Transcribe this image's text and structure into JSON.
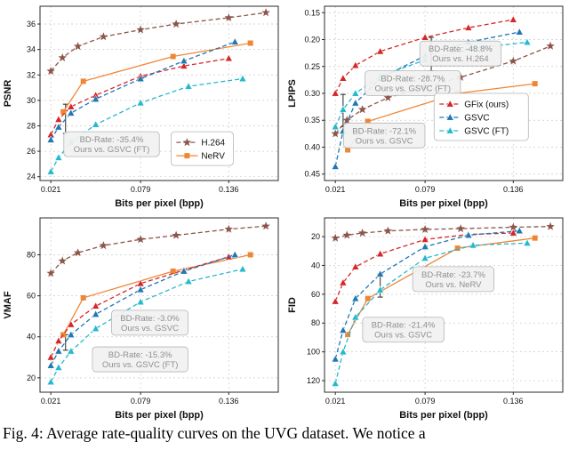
{
  "caption": "Fig. 4: Average rate-quality curves on the UVG dataset. We notice a",
  "xlabel": "Bits per pixel (bpp)",
  "colors": {
    "h264": "#8c564b",
    "nerv": "#ef8636",
    "gfix": "#d62728",
    "gsvc": "#1f77b4",
    "gsvc_ft": "#25b9cf",
    "annotation_text": "#8f8f8f",
    "annotation_box": "#f1f1f1"
  },
  "chart_data": [
    {
      "id": "psnr",
      "type": "line",
      "title": "",
      "ylabel": "PSNR",
      "inverted": false,
      "xlim": [
        0.014,
        0.168
      ],
      "ylim": [
        23.7,
        37.4
      ],
      "xticks": {
        "values": [
          0.021,
          0.079,
          0.136
        ],
        "labels": [
          "0.021",
          "0.079",
          "0.136"
        ]
      },
      "yticks": {
        "values": [
          24,
          26,
          28,
          30,
          32,
          34,
          36
        ],
        "labels": [
          "24",
          "26",
          "28",
          "30",
          "32",
          "34",
          "36"
        ]
      },
      "series": [
        {
          "name": "H.264",
          "color": "#8c564b",
          "marker": "star",
          "dash": true,
          "x": [
            0.021,
            0.0285,
            0.0385,
            0.055,
            0.079,
            0.102,
            0.136,
            0.16
          ],
          "y": [
            32.3,
            33.35,
            34.25,
            35.0,
            35.55,
            36.0,
            36.5,
            36.9
          ]
        },
        {
          "name": "NeRV",
          "color": "#ef8636",
          "marker": "square",
          "dash": false,
          "x": [
            0.029,
            0.042,
            0.1,
            0.15
          ],
          "y": [
            29.1,
            31.5,
            33.45,
            34.5
          ]
        },
        {
          "name": "GFix (ours)",
          "color": "#d62728",
          "marker": "triangle",
          "dash": true,
          "x": [
            0.021,
            0.026,
            0.034,
            0.05,
            0.079,
            0.107,
            0.136
          ],
          "y": [
            27.3,
            28.5,
            29.5,
            30.4,
            31.9,
            32.7,
            33.3
          ]
        },
        {
          "name": "GSVC",
          "color": "#1f77b4",
          "marker": "triangle",
          "dash": true,
          "x": [
            0.021,
            0.026,
            0.034,
            0.05,
            0.079,
            0.107,
            0.14
          ],
          "y": [
            26.9,
            27.9,
            29.0,
            30.1,
            31.7,
            33.1,
            34.6
          ]
        },
        {
          "name": "GSVC (FT)",
          "color": "#25b9cf",
          "marker": "triangle",
          "dash": true,
          "x": [
            0.021,
            0.026,
            0.034,
            0.05,
            0.079,
            0.11,
            0.145
          ],
          "y": [
            24.4,
            25.5,
            26.7,
            28.1,
            29.8,
            31.1,
            31.7
          ]
        }
      ],
      "legend": {
        "items": [
          "H.264",
          "NeRV"
        ],
        "x": 0.55,
        "y": 0.72
      },
      "annotations": [
        {
          "lines": [
            "BD-Rate: -35.4%",
            "Ours vs. GSVC (FT)"
          ],
          "x": 0.1,
          "y": 0.72
        }
      ],
      "arrows": [
        {
          "x": 0.0305,
          "y1": 27.4,
          "y2": 29.7
        }
      ]
    },
    {
      "id": "lpips",
      "type": "line",
      "title": "",
      "ylabel": "LPIPS",
      "inverted": true,
      "xlim": [
        0.014,
        0.168
      ],
      "ylim": [
        0.138,
        0.462
      ],
      "xticks": {
        "values": [
          0.021,
          0.079,
          0.136
        ],
        "labels": [
          "0.021",
          "0.079",
          "0.136"
        ]
      },
      "yticks": {
        "values": [
          0.15,
          0.2,
          0.25,
          0.3,
          0.35,
          0.4,
          0.45
        ],
        "labels": [
          "0.15",
          "0.20",
          "0.25",
          "0.30",
          "0.35",
          "0.40",
          "0.45"
        ]
      },
      "series": [
        {
          "name": "H.264",
          "color": "#8c564b",
          "marker": "star",
          "dash": true,
          "x": [
            0.021,
            0.0285,
            0.0385,
            0.055,
            0.079,
            0.102,
            0.136,
            0.16
          ],
          "y": [
            0.375,
            0.35,
            0.33,
            0.308,
            0.288,
            0.27,
            0.24,
            0.212
          ]
        },
        {
          "name": "NeRV",
          "color": "#ef8636",
          "marker": "square",
          "dash": false,
          "x": [
            0.029,
            0.042,
            0.1,
            0.15
          ],
          "y": [
            0.405,
            0.352,
            0.3,
            0.282
          ]
        },
        {
          "name": "GFix (ours)",
          "color": "#d62728",
          "marker": "triangle",
          "dash": true,
          "x": [
            0.021,
            0.026,
            0.034,
            0.05,
            0.079,
            0.107,
            0.136
          ],
          "y": [
            0.3,
            0.272,
            0.248,
            0.222,
            0.196,
            0.178,
            0.163
          ]
        },
        {
          "name": "GSVC",
          "color": "#1f77b4",
          "marker": "triangle",
          "dash": true,
          "x": [
            0.021,
            0.026,
            0.034,
            0.05,
            0.079,
            0.107,
            0.14
          ],
          "y": [
            0.436,
            0.37,
            0.318,
            0.272,
            0.23,
            0.205,
            0.186
          ]
        },
        {
          "name": "GSVC (FT)",
          "color": "#25b9cf",
          "marker": "triangle",
          "dash": true,
          "x": [
            0.021,
            0.026,
            0.034,
            0.05,
            0.079,
            0.11,
            0.145
          ],
          "y": [
            0.362,
            0.33,
            0.3,
            0.268,
            0.238,
            0.216,
            0.205
          ]
        }
      ],
      "legend": {
        "items": [
          "GFix (ours)",
          "GSVC",
          "GSVC (FT)"
        ],
        "x": 0.46,
        "y": 0.5
      },
      "annotations": [
        {
          "lines": [
            "BD-Rate: -48.8%",
            "Ours vs. H.264"
          ],
          "x": 0.4,
          "y": 0.2
        },
        {
          "lines": [
            "BD-Rate: -28.7%",
            "Ours vs. GSVC (FT)"
          ],
          "x": 0.17,
          "y": 0.37
        },
        {
          "lines": [
            "BD-Rate: -72.1%",
            "Ours vs. GSVC"
          ],
          "x": 0.08,
          "y": 0.67
        }
      ],
      "arrows": [
        {
          "x": 0.026,
          "y1": 0.302,
          "y2": 0.362
        },
        {
          "x": 0.083,
          "y1": 0.196,
          "y2": 0.258
        }
      ]
    },
    {
      "id": "vmaf",
      "type": "line",
      "title": "",
      "ylabel": "VMAF",
      "inverted": false,
      "xlim": [
        0.014,
        0.168
      ],
      "ylim": [
        13,
        98
      ],
      "xticks": {
        "values": [
          0.021,
          0.079,
          0.136
        ],
        "labels": [
          "0.021",
          "0.079",
          "0.136"
        ]
      },
      "yticks": {
        "values": [
          20,
          40,
          60,
          80
        ],
        "labels": [
          "20",
          "40",
          "60",
          "80"
        ]
      },
      "series": [
        {
          "name": "H.264",
          "color": "#8c564b",
          "marker": "star",
          "dash": true,
          "x": [
            0.021,
            0.0285,
            0.0385,
            0.055,
            0.079,
            0.102,
            0.136,
            0.16
          ],
          "y": [
            71,
            77,
            81,
            84.5,
            87.5,
            89.5,
            92.5,
            94
          ]
        },
        {
          "name": "NeRV",
          "color": "#ef8636",
          "marker": "square",
          "dash": false,
          "x": [
            0.029,
            0.042,
            0.1,
            0.15
          ],
          "y": [
            41,
            59,
            72,
            80
          ]
        },
        {
          "name": "GFix (ours)",
          "color": "#d62728",
          "marker": "triangle",
          "dash": true,
          "x": [
            0.021,
            0.026,
            0.034,
            0.05,
            0.079,
            0.107,
            0.136
          ],
          "y": [
            30,
            38,
            46,
            55,
            66,
            72.5,
            79
          ]
        },
        {
          "name": "GSVC",
          "color": "#1f77b4",
          "marker": "triangle",
          "dash": true,
          "x": [
            0.021,
            0.026,
            0.034,
            0.05,
            0.079,
            0.107,
            0.14
          ],
          "y": [
            26,
            33,
            41,
            51,
            63,
            72,
            80
          ]
        },
        {
          "name": "GSVC (FT)",
          "color": "#25b9cf",
          "marker": "triangle",
          "dash": true,
          "x": [
            0.021,
            0.026,
            0.034,
            0.05,
            0.079,
            0.11,
            0.145
          ],
          "y": [
            18,
            25,
            33,
            44,
            57,
            67,
            73
          ]
        }
      ],
      "annotations": [
        {
          "lines": [
            "BD-Rate: -3.0%",
            "Ours vs. GSVC"
          ],
          "x": 0.3,
          "y": 0.53
        },
        {
          "lines": [
            "BD-Rate: -15.3%",
            "Ours vs. GSVC (FT)"
          ],
          "x": 0.22,
          "y": 0.74
        }
      ],
      "arrows": [
        {
          "x": 0.0305,
          "y1": 33.5,
          "y2": 41
        }
      ]
    },
    {
      "id": "fid",
      "type": "line",
      "title": "",
      "ylabel": "FID",
      "inverted": true,
      "xlim": [
        0.014,
        0.168
      ],
      "ylim": [
        7,
        128
      ],
      "xticks": {
        "values": [
          0.021,
          0.079,
          0.136
        ],
        "labels": [
          "0.021",
          "0.079",
          "0.136"
        ]
      },
      "yticks": {
        "values": [
          20,
          40,
          60,
          80,
          100,
          120
        ],
        "labels": [
          "20",
          "40",
          "60",
          "80",
          "100",
          "120"
        ]
      },
      "series": [
        {
          "name": "H.264",
          "color": "#8c564b",
          "marker": "star",
          "dash": true,
          "x": [
            0.021,
            0.0285,
            0.0385,
            0.055,
            0.079,
            0.102,
            0.136,
            0.16
          ],
          "y": [
            21,
            19,
            17.5,
            16,
            15,
            14.5,
            13.5,
            13
          ]
        },
        {
          "name": "NeRV",
          "color": "#ef8636",
          "marker": "square",
          "dash": false,
          "x": [
            0.029,
            0.042,
            0.1,
            0.15
          ],
          "y": [
            88,
            63,
            28,
            21
          ]
        },
        {
          "name": "GFix (ours)",
          "color": "#d62728",
          "marker": "triangle",
          "dash": true,
          "x": [
            0.021,
            0.026,
            0.034,
            0.05,
            0.079,
            0.107,
            0.136
          ],
          "y": [
            65,
            52,
            41,
            32,
            22,
            18.5,
            17.5
          ]
        },
        {
          "name": "GSVC",
          "color": "#1f77b4",
          "marker": "triangle",
          "dash": true,
          "x": [
            0.021,
            0.026,
            0.034,
            0.05,
            0.079,
            0.107,
            0.14
          ],
          "y": [
            105,
            85,
            63,
            46,
            27,
            19,
            16
          ]
        },
        {
          "name": "GSVC (FT)",
          "color": "#25b9cf",
          "marker": "triangle",
          "dash": true,
          "x": [
            0.021,
            0.026,
            0.034,
            0.05,
            0.079,
            0.11,
            0.145
          ],
          "y": [
            122,
            100,
            76,
            57,
            35,
            26,
            24.5
          ]
        }
      ],
      "annotations": [
        {
          "lines": [
            "BD-Rate: -23.7%",
            "Ours vs. NeRV"
          ],
          "x": 0.37,
          "y": 0.28
        },
        {
          "lines": [
            "BD-Rate: -21.4%",
            "Ours vs. GSVC"
          ],
          "x": 0.16,
          "y": 0.57
        }
      ],
      "arrows": [
        {
          "x": 0.05,
          "y1": 46,
          "y2": 62
        }
      ]
    }
  ]
}
